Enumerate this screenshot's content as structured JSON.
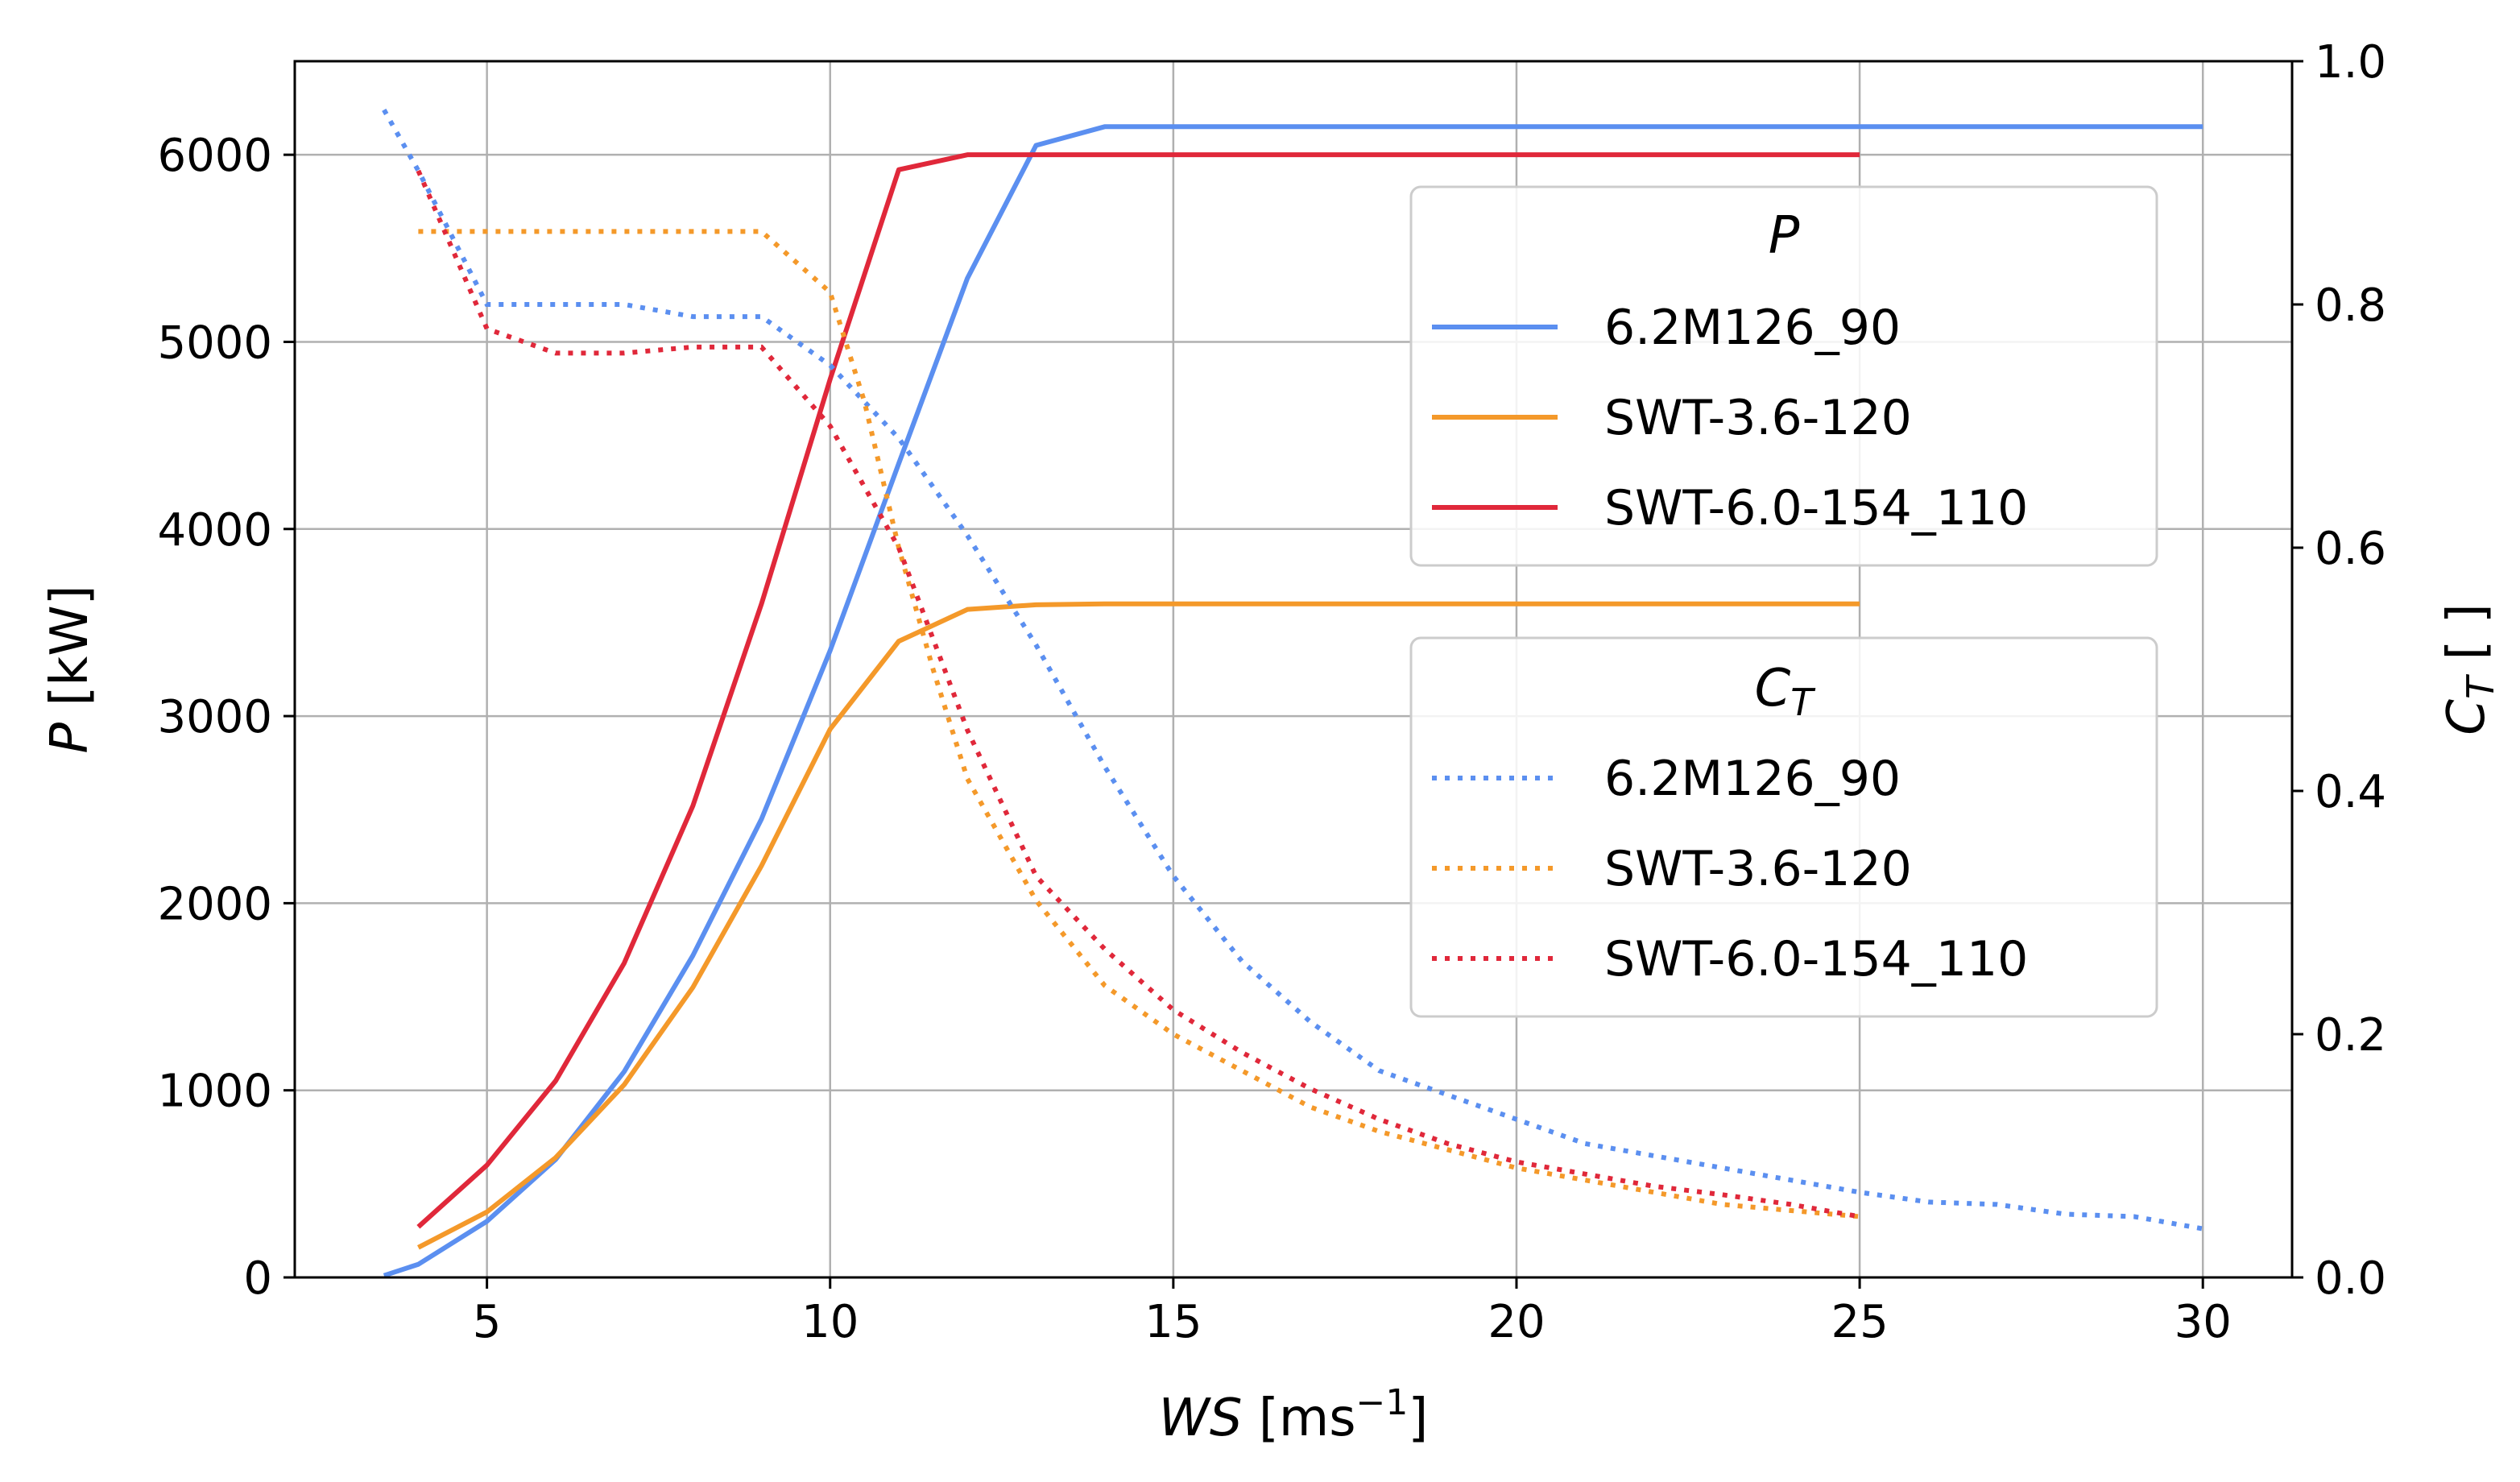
{
  "chart_data": {
    "type": "line",
    "xlabel": {
      "main": "WS",
      "unit_prefix": " [ms",
      "sup": "−1",
      "unit_suffix": "]"
    },
    "ylabel_left": {
      "main": "P",
      "unit": " [kW]"
    },
    "ylabel_right": {
      "main": "C",
      "sub": "T",
      "unit": " [ ]"
    },
    "xlim": [
      2.2,
      31.3
    ],
    "ylim_left": [
      0,
      6500
    ],
    "ylim_right": [
      0,
      1.0
    ],
    "x_ticks": [
      5,
      10,
      15,
      20,
      25,
      30
    ],
    "y_ticks_left": [
      0,
      1000,
      2000,
      3000,
      4000,
      5000,
      6000
    ],
    "y_ticks_right": [
      "0.0",
      "0.2",
      "0.4",
      "0.6",
      "0.8",
      "1.0"
    ],
    "grid": true,
    "colors": {
      "blue": "#5b8ff0",
      "orange": "#f4992a",
      "red": "#e0283a"
    },
    "legend_power": {
      "title": "P",
      "entries": [
        "6.2M126_90",
        "SWT-3.6-120",
        "SWT-6.0-154_110"
      ]
    },
    "legend_ct": {
      "title_main": "C",
      "title_sub": "T",
      "entries": [
        "6.2M126_90",
        "SWT-3.6-120",
        "SWT-6.0-154_110"
      ]
    },
    "series_power": [
      {
        "name": "6.2M126_90",
        "color": "#5b8ff0",
        "x": [
          3.5,
          4,
          5,
          6,
          7,
          8,
          9,
          10,
          11,
          12,
          13,
          14,
          15,
          20,
          25,
          30
        ],
        "y": [
          10,
          70,
          300,
          630,
          1100,
          1720,
          2450,
          3350,
          4350,
          5340,
          6050,
          6150,
          6150,
          6150,
          6150,
          6150
        ]
      },
      {
        "name": "SWT-3.6-120",
        "color": "#f4992a",
        "x": [
          4,
          5,
          6,
          7,
          8,
          9,
          10,
          11,
          12,
          13,
          14,
          15,
          20,
          25
        ],
        "y": [
          160,
          350,
          640,
          1030,
          1550,
          2200,
          2930,
          3400,
          3570,
          3595,
          3600,
          3600,
          3600,
          3600
        ]
      },
      {
        "name": "SWT-6.0-154_110",
        "color": "#e0283a",
        "x": [
          4,
          5,
          6,
          7,
          8,
          9,
          10,
          11,
          12,
          13,
          20,
          25
        ],
        "y": [
          270,
          600,
          1050,
          1680,
          2520,
          3600,
          4800,
          5920,
          6000,
          6000,
          6000,
          6000
        ]
      }
    ],
    "series_ct": [
      {
        "name": "6.2M126_90",
        "color": "#5b8ff0",
        "x": [
          3.5,
          4,
          5,
          6,
          7,
          8,
          9,
          10,
          11,
          12,
          13,
          14,
          15,
          16,
          17,
          18,
          19,
          20,
          21,
          22,
          23,
          24,
          25,
          26,
          27,
          28,
          29,
          30
        ],
        "y": [
          0.96,
          0.91,
          0.8,
          0.8,
          0.8,
          0.79,
          0.79,
          0.75,
          0.69,
          0.61,
          0.52,
          0.42,
          0.33,
          0.26,
          0.21,
          0.17,
          0.15,
          0.13,
          0.11,
          0.1,
          0.09,
          0.08,
          0.07,
          0.062,
          0.06,
          0.052,
          0.05,
          0.04
        ]
      },
      {
        "name": "SWT-3.6-120",
        "color": "#f4992a",
        "x": [
          4,
          5,
          6,
          7,
          8,
          9,
          10,
          10.5,
          11,
          11.5,
          12,
          13,
          14,
          15,
          16,
          17,
          18,
          19,
          20,
          21,
          22,
          23,
          24,
          25
        ],
        "y": [
          0.86,
          0.86,
          0.86,
          0.86,
          0.86,
          0.86,
          0.81,
          0.72,
          0.6,
          0.5,
          0.41,
          0.31,
          0.24,
          0.2,
          0.17,
          0.14,
          0.12,
          0.105,
          0.09,
          0.08,
          0.07,
          0.06,
          0.055,
          0.05
        ]
      },
      {
        "name": "SWT-6.0-154_110",
        "color": "#e0283a",
        "x": [
          4,
          5,
          6,
          7,
          8,
          9,
          10,
          11,
          12,
          13,
          14,
          15,
          16,
          17,
          18,
          19,
          20,
          21,
          22,
          23,
          24,
          25
        ],
        "y": [
          0.91,
          0.78,
          0.76,
          0.76,
          0.765,
          0.765,
          0.7,
          0.6,
          0.45,
          0.33,
          0.27,
          0.22,
          0.185,
          0.155,
          0.13,
          0.11,
          0.095,
          0.085,
          0.075,
          0.068,
          0.06,
          0.05
        ]
      }
    ]
  }
}
